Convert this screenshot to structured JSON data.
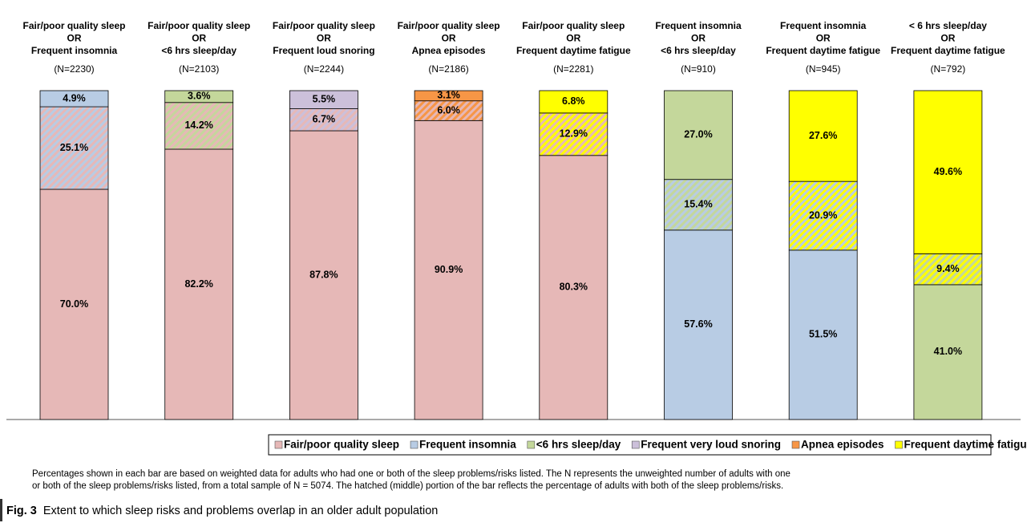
{
  "chart_data": {
    "type": "stacked_bar",
    "ylim": [
      0,
      100
    ],
    "series": [
      {
        "name": "Fair/poor quality sleep",
        "color": "#e6b8b7"
      },
      {
        "name": "Frequent insomnia",
        "color": "#b8cce4"
      },
      {
        "name": "<6 hrs sleep/day",
        "color": "#c4d79b"
      },
      {
        "name": "Frequent very loud snoring",
        "color": "#ccc0da"
      },
      {
        "name": "Apnea episodes",
        "color": "#f79646"
      },
      {
        "name": "Frequent daytime fatigue",
        "color": "#ffff00"
      }
    ],
    "bars": [
      {
        "label": [
          "Fair/poor quality sleep",
          "OR",
          "Frequent insomnia"
        ],
        "n": "(N=2230)",
        "series_pair": [
          0,
          1
        ],
        "values": [
          70,
          25.1,
          4.9
        ],
        "value_labels": [
          "70.0%",
          "25.1%",
          "4.9%"
        ]
      },
      {
        "label": [
          "Fair/poor quality sleep",
          "OR",
          "<6 hrs sleep/day"
        ],
        "n": "(N=2103)",
        "series_pair": [
          0,
          2
        ],
        "values": [
          82.2,
          14.2,
          3.6
        ],
        "value_labels": [
          "82.2%",
          "14.2%",
          "3.6%"
        ]
      },
      {
        "label": [
          "Fair/poor quality sleep",
          "OR",
          "Frequent loud snoring"
        ],
        "n": "(N=2244)",
        "series_pair": [
          0,
          3
        ],
        "values": [
          87.8,
          6.7,
          5.5
        ],
        "value_labels": [
          "87.8%",
          "6.7%",
          "5.5%"
        ]
      },
      {
        "label": [
          "Fair/poor quality sleep",
          "OR",
          "Apnea episodes"
        ],
        "n": "(N=2186)",
        "series_pair": [
          0,
          4
        ],
        "values": [
          90.9,
          6,
          3.1
        ],
        "value_labels": [
          "90.9%",
          "6.0%",
          "3.1%"
        ]
      },
      {
        "label": [
          "Fair/poor quality sleep",
          "OR",
          "Frequent daytime fatigue"
        ],
        "n": "(N=2281)",
        "series_pair": [
          0,
          5
        ],
        "values": [
          80.3,
          12.9,
          6.8
        ],
        "value_labels": [
          "80.3%",
          "12.9%",
          "6.8%"
        ]
      },
      {
        "label": [
          "Frequent insomnia",
          "OR",
          "<6 hrs sleep/day"
        ],
        "n": "(N=910)",
        "series_pair": [
          1,
          2
        ],
        "values": [
          57.6,
          15.4,
          27
        ],
        "value_labels": [
          "57.6%",
          "15.4%",
          "27.0%"
        ]
      },
      {
        "label": [
          "Frequent insomnia",
          "OR",
          "Frequent daytime fatigue"
        ],
        "n": "(N=945)",
        "series_pair": [
          1,
          5
        ],
        "values": [
          51.5,
          20.9,
          27.6
        ],
        "value_labels": [
          "51.5%",
          "20.9%",
          "27.6%"
        ]
      },
      {
        "label": [
          "< 6 hrs sleep/day",
          "OR",
          "Frequent daytime fatigue"
        ],
        "n": "(N=792)",
        "series_pair": [
          2,
          5
        ],
        "values": [
          41,
          9.4,
          49.6
        ],
        "value_labels": [
          "41.0%",
          "9.4%",
          "49.6%"
        ]
      }
    ],
    "notes": [
      "Percentages shown in each bar are based on weighted data for adults who had one or both of the sleep problems/risks listed. The N represents the unweighted number of adults with one",
      "or both of the sleep problems/risks listed, from a total sample of N = 5074. The hatched (middle) portion of the bar reflects the percentage of adults with both of the sleep problems/risks."
    ],
    "caption": {
      "prefix": "Fig. 3",
      "text": "Extent to which sleep risks and problems overlap in an older adult population"
    }
  }
}
